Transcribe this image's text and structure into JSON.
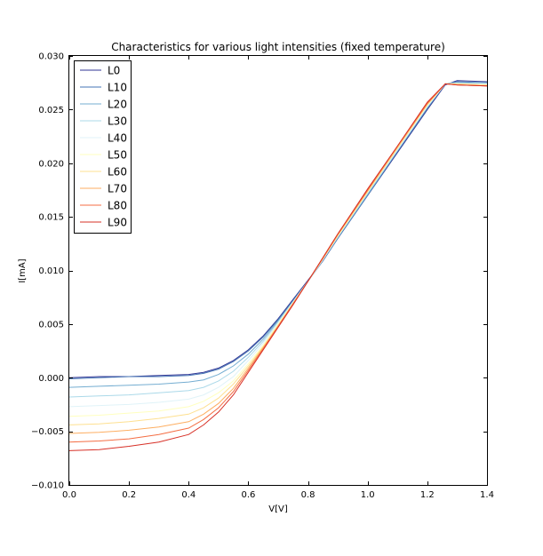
{
  "chart_data": {
    "type": "line",
    "title": "Characteristics for various light intensities (fixed temperature)",
    "xlabel": "V[V]",
    "ylabel": "I[mA]",
    "xlim": [
      0.0,
      1.4
    ],
    "ylim": [
      -0.01,
      0.03
    ],
    "xticks": [
      0.0,
      0.2,
      0.4,
      0.6,
      0.8,
      1.0,
      1.2,
      1.4
    ],
    "xtick_labels": [
      "0.0",
      "0.2",
      "0.4",
      "0.6",
      "0.8",
      "1.0",
      "1.2",
      "1.4"
    ],
    "yticks": [
      -0.01,
      -0.005,
      0.0,
      0.005,
      0.01,
      0.015,
      0.02,
      0.025,
      0.03
    ],
    "ytick_labels": [
      "−0.010",
      "−0.005",
      "0.000",
      "0.005",
      "0.010",
      "0.015",
      "0.020",
      "0.025",
      "0.030"
    ],
    "grid": false,
    "legend_position": "top-left",
    "x": [
      0.0,
      0.1,
      0.2,
      0.3,
      0.4,
      0.45,
      0.5,
      0.55,
      0.6,
      0.65,
      0.7,
      0.75,
      0.8,
      0.85,
      0.9,
      1.0,
      1.1,
      1.2,
      1.26,
      1.3,
      1.4
    ],
    "series": [
      {
        "name": "L0",
        "color": "#313695",
        "values": [
          0.0,
          0.0001,
          0.0001,
          0.0002,
          0.0003,
          0.0005,
          0.0009,
          0.0016,
          0.0026,
          0.0039,
          0.0055,
          0.0073,
          0.0091,
          0.0109,
          0.013,
          0.017,
          0.021,
          0.025,
          0.0273,
          0.0277,
          0.0276
        ]
      },
      {
        "name": "L10",
        "color": "#4575b4",
        "values": [
          -0.0001,
          0.0,
          0.0001,
          0.0001,
          0.0002,
          0.0004,
          0.0008,
          0.0015,
          0.0025,
          0.0038,
          0.0054,
          0.0072,
          0.009,
          0.0109,
          0.013,
          0.017,
          0.0211,
          0.0251,
          0.0274,
          0.0276,
          0.0275
        ]
      },
      {
        "name": "L20",
        "color": "#74add1",
        "values": [
          -0.0009,
          -0.0008,
          -0.0007,
          -0.0006,
          -0.0004,
          -0.0002,
          0.0003,
          0.0011,
          0.0022,
          0.0036,
          0.0053,
          0.0071,
          0.009,
          0.011,
          0.0131,
          0.0171,
          0.0212,
          0.0252,
          0.0274,
          0.0275,
          0.0275
        ]
      },
      {
        "name": "L30",
        "color": "#abd9e9",
        "values": [
          -0.0018,
          -0.0017,
          -0.0016,
          -0.0014,
          -0.0012,
          -0.0009,
          -0.0003,
          0.0006,
          0.0019,
          0.0034,
          0.0052,
          0.0071,
          0.009,
          0.011,
          0.0131,
          0.0172,
          0.0212,
          0.0253,
          0.0274,
          0.0275,
          0.0274
        ]
      },
      {
        "name": "L40",
        "color": "#e0f3f8",
        "values": [
          -0.0027,
          -0.0026,
          -0.0025,
          -0.0023,
          -0.002,
          -0.0016,
          -0.0009,
          0.0001,
          0.0016,
          0.0032,
          0.0051,
          0.007,
          0.009,
          0.011,
          0.0132,
          0.0173,
          0.0213,
          0.0253,
          0.0274,
          0.0274,
          0.0274
        ]
      },
      {
        "name": "L50",
        "color": "#ffffbf",
        "values": [
          -0.0036,
          -0.0035,
          -0.0033,
          -0.0031,
          -0.0027,
          -0.0022,
          -0.0014,
          -0.0003,
          0.0013,
          0.003,
          0.005,
          0.007,
          0.009,
          0.0111,
          0.0132,
          0.0173,
          0.0214,
          0.0254,
          0.0274,
          0.0274,
          0.0273
        ]
      },
      {
        "name": "L60",
        "color": "#fee090",
        "values": [
          -0.0044,
          -0.0043,
          -0.0041,
          -0.0038,
          -0.0034,
          -0.0028,
          -0.0019,
          -0.0006,
          0.0011,
          0.0029,
          0.0049,
          0.0069,
          0.009,
          0.0111,
          0.0133,
          0.0174,
          0.0214,
          0.0255,
          0.0274,
          0.0274,
          0.0273
        ]
      },
      {
        "name": "L70",
        "color": "#fdae61",
        "values": [
          -0.0052,
          -0.0051,
          -0.0049,
          -0.0046,
          -0.0041,
          -0.0034,
          -0.0024,
          -0.001,
          0.0009,
          0.0028,
          0.0048,
          0.0069,
          0.009,
          0.0111,
          0.0133,
          0.0174,
          0.0215,
          0.0255,
          0.0274,
          0.0273,
          0.0272
        ]
      },
      {
        "name": "L80",
        "color": "#f46d43",
        "values": [
          -0.006,
          -0.0059,
          -0.0057,
          -0.0053,
          -0.0047,
          -0.0039,
          -0.0028,
          -0.0013,
          0.0007,
          0.0027,
          0.0048,
          0.0069,
          0.009,
          0.0112,
          0.0134,
          0.0175,
          0.0216,
          0.0256,
          0.0274,
          0.0273,
          0.0272
        ]
      },
      {
        "name": "L90",
        "color": "#d73027",
        "values": [
          -0.0068,
          -0.0067,
          -0.0064,
          -0.006,
          -0.0053,
          -0.0044,
          -0.0032,
          -0.0016,
          0.0005,
          0.0026,
          0.0047,
          0.0068,
          0.009,
          0.0112,
          0.0134,
          0.0176,
          0.0216,
          0.0257,
          0.0274,
          0.0273,
          0.0272
        ]
      }
    ]
  }
}
